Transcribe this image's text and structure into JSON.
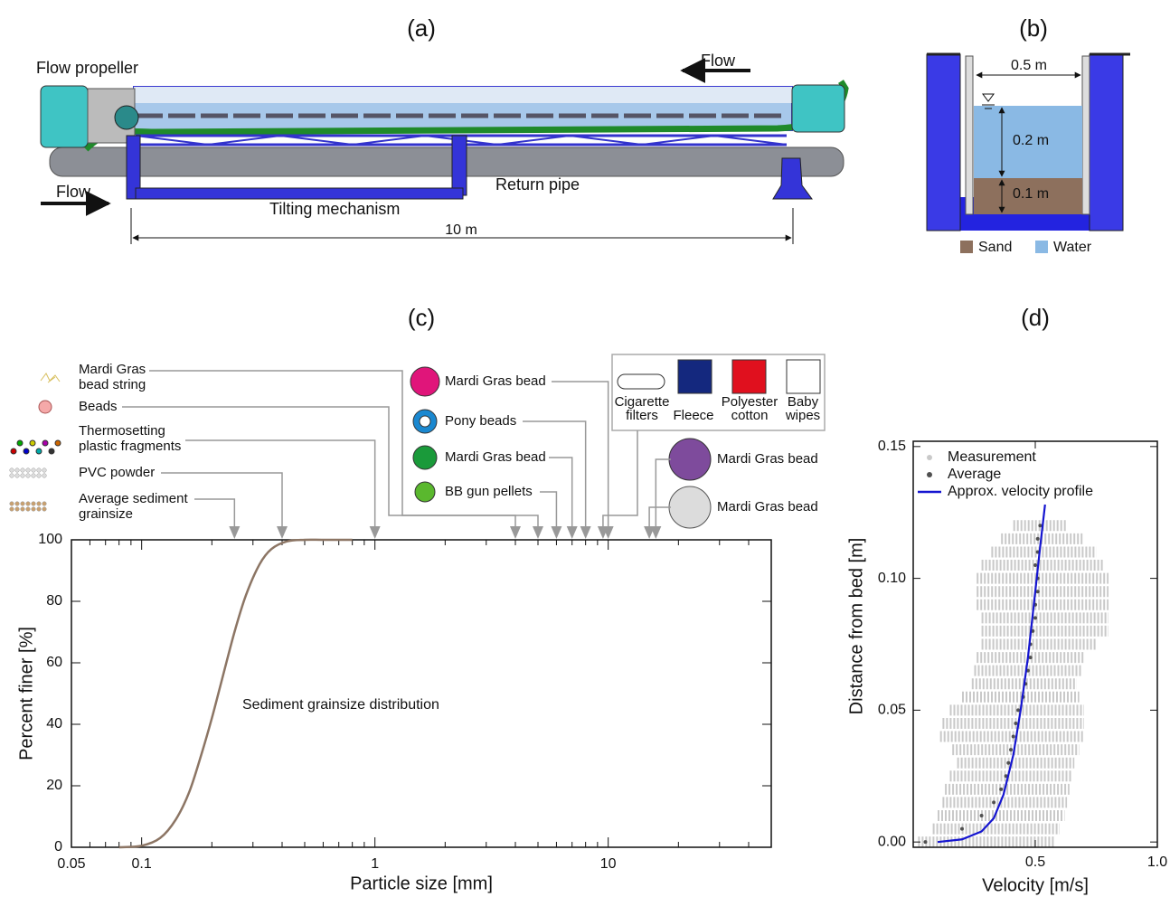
{
  "panel_a": {
    "label": "(a)",
    "flow_propeller": "Flow propeller",
    "flow_in": "Flow",
    "flow_top": "Flow",
    "return_pipe": "Return pipe",
    "tilting": "Tilting mechanism",
    "length": "10 m"
  },
  "panel_b": {
    "label": "(b)",
    "width": "0.5 m",
    "water_depth": "0.2 m",
    "sand_depth": "0.1 m",
    "legend": [
      "Sand",
      "Water"
    ]
  },
  "chart_data": [
    {
      "type": "line",
      "title": "(c)",
      "x_label": "Particle size [mm]",
      "y_label": "Percent finer [%]",
      "log_x": true,
      "xlim": [
        0.05,
        50
      ],
      "xticks": [
        0.05,
        0.1,
        1,
        10
      ],
      "ylim": [
        0,
        100
      ],
      "yticks": [
        0,
        20,
        40,
        60,
        80,
        100
      ],
      "annotation": "Sediment grainsize distribution",
      "color": "#8c7564",
      "x": [
        0.08,
        0.1,
        0.12,
        0.14,
        0.16,
        0.18,
        0.2,
        0.22,
        0.25,
        0.28,
        0.32,
        0.36,
        0.42,
        0.5,
        0.6,
        0.8
      ],
      "values": [
        0,
        0.5,
        3,
        9,
        18,
        30,
        42,
        54,
        70,
        82,
        92,
        97,
        99.5,
        100,
        100,
        100
      ],
      "particles": [
        {
          "label": [
            "Mardi Gras",
            "bead string"
          ],
          "size": 5
        },
        {
          "label": [
            "Beads"
          ],
          "size": 4
        },
        {
          "label": [
            "Thermosetting",
            "plastic fragments"
          ],
          "size": 1
        },
        {
          "label": [
            "PVC powder"
          ],
          "size": 0.4
        },
        {
          "label": [
            "Average sediment",
            "grainsize"
          ],
          "size": 0.25
        },
        {
          "label": [
            "Mardi Gras bead"
          ],
          "size": 10
        },
        {
          "label": [
            "Pony beads"
          ],
          "size": 8
        },
        {
          "label": [
            "Mardi Gras bead"
          ],
          "size": 7
        },
        {
          "label": [
            "BB gun pellets"
          ],
          "size": 6
        },
        {
          "label": [
            "Mardi Gras bead"
          ],
          "size": 16
        },
        {
          "label": [
            "Mardi Gras bead"
          ],
          "size": 15
        }
      ],
      "textiles": {
        "items": [
          [
            "Cigarette",
            "filters"
          ],
          [
            "Fleece"
          ],
          [
            "Polyester",
            "cotton"
          ],
          [
            "Baby",
            "wipes"
          ]
        ],
        "size": 9.5
      }
    },
    {
      "type": "scatter",
      "title": "(d)",
      "x_label": "Velocity [m/s]",
      "y_label": "Distance from bed [m]",
      "xlim": [
        0,
        1
      ],
      "xticks": [
        0.5,
        {
          "value": 1,
          "label": "1.0"
        }
      ],
      "ylim": [
        -0.002,
        0.152
      ],
      "yticks": [
        {
          "value": 0,
          "label": "0.00"
        },
        0.05,
        {
          "value": 0.1,
          "label": "0.10"
        },
        {
          "value": 0.15,
          "label": "0.15"
        }
      ],
      "series": [
        {
          "name": "Measurement",
          "color": "#c9c9c9",
          "kind": "range",
          "y": [
            0,
            0.005,
            0.01,
            0.015,
            0.02,
            0.025,
            0.03,
            0.035,
            0.04,
            0.045,
            0.05,
            0.055,
            0.06,
            0.065,
            0.07,
            0.075,
            0.08,
            0.085,
            0.09,
            0.095,
            0.1,
            0.105,
            0.11,
            0.115,
            0.12
          ],
          "x_min": [
            0.02,
            0.08,
            0.1,
            0.12,
            0.13,
            0.15,
            0.18,
            0.16,
            0.11,
            0.12,
            0.15,
            0.2,
            0.24,
            0.25,
            0.26,
            0.28,
            0.28,
            0.28,
            0.26,
            0.26,
            0.26,
            0.28,
            0.32,
            0.36,
            0.41
          ],
          "x_max": [
            0.58,
            0.6,
            0.62,
            0.63,
            0.64,
            0.65,
            0.66,
            0.68,
            0.7,
            0.7,
            0.7,
            0.68,
            0.67,
            0.69,
            0.7,
            0.75,
            0.8,
            0.8,
            0.8,
            0.8,
            0.8,
            0.78,
            0.75,
            0.7,
            0.63
          ]
        },
        {
          "name": "Average",
          "color": "#505050",
          "kind": "points",
          "y": [
            0,
            0.005,
            0.01,
            0.015,
            0.02,
            0.025,
            0.03,
            0.035,
            0.04,
            0.045,
            0.05,
            0.055,
            0.06,
            0.065,
            0.07,
            0.075,
            0.08,
            0.085,
            0.09,
            0.095,
            0.1,
            0.105,
            0.11,
            0.115,
            0.12
          ],
          "x": [
            0.05,
            0.2,
            0.28,
            0.33,
            0.36,
            0.38,
            0.39,
            0.4,
            0.41,
            0.42,
            0.43,
            0.45,
            0.46,
            0.47,
            0.48,
            0.48,
            0.49,
            0.5,
            0.5,
            0.51,
            0.51,
            0.5,
            0.51,
            0.51,
            0.52
          ]
        },
        {
          "name": "Approx. velocity profile",
          "color": "#1515d0",
          "kind": "line",
          "y": [
            0,
            0.001,
            0.004,
            0.009,
            0.018,
            0.033,
            0.05,
            0.07,
            0.095,
            0.112,
            0.128
          ],
          "x": [
            0.1,
            0.2,
            0.28,
            0.33,
            0.37,
            0.41,
            0.44,
            0.47,
            0.5,
            0.52,
            0.54
          ]
        }
      ]
    }
  ]
}
